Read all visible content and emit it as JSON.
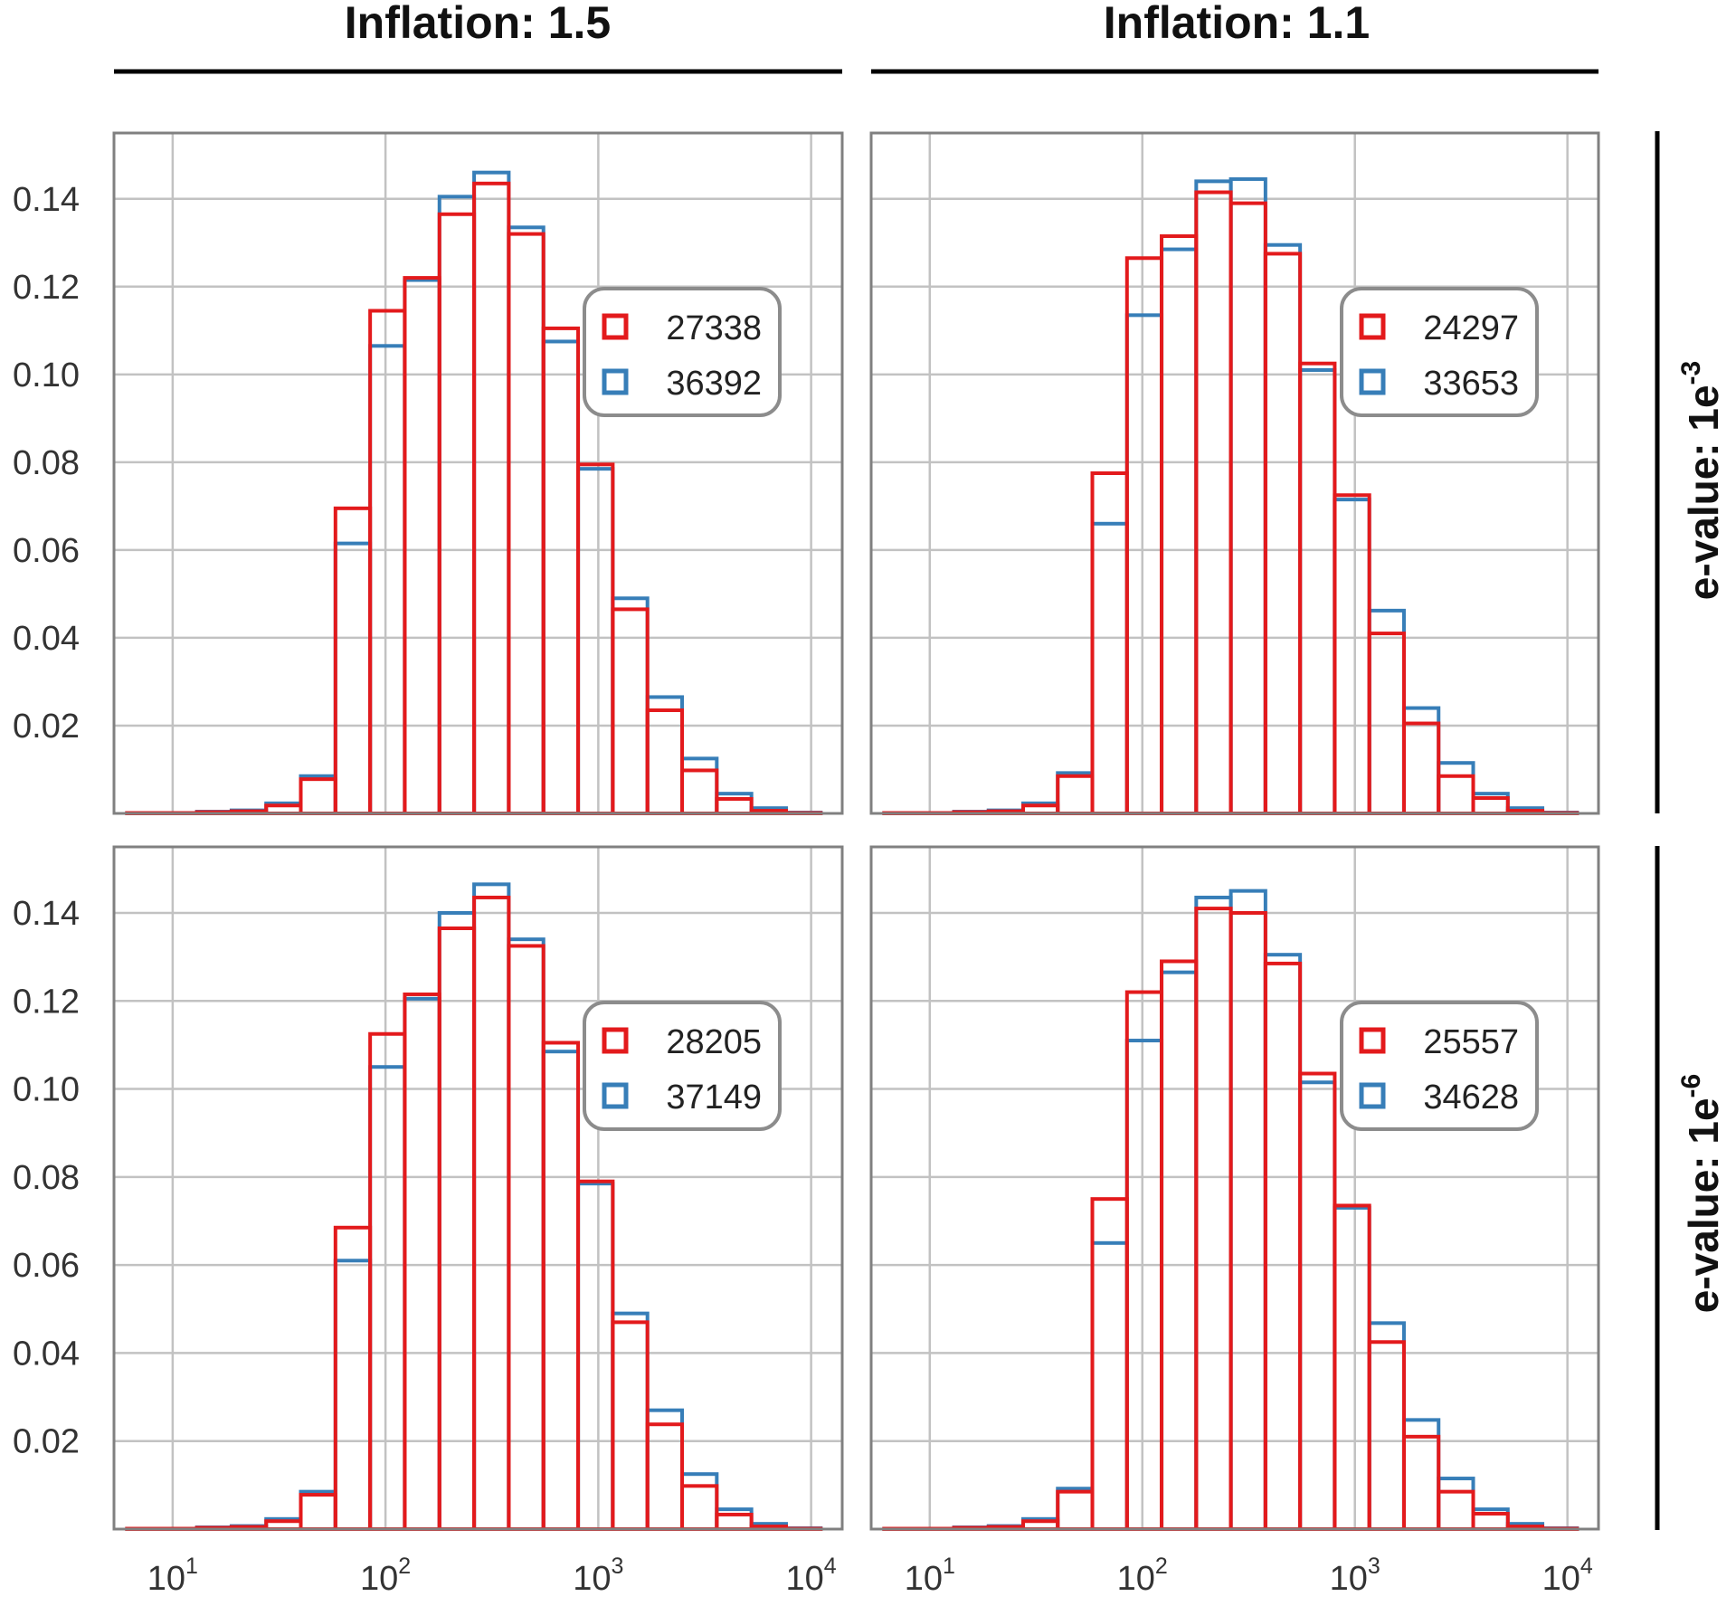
{
  "column_titles": [
    "Inflation: 1.5",
    "Inflation: 1.1"
  ],
  "row_titles": [
    {
      "prefix": "e-value: 1e",
      "exponent": "-3"
    },
    {
      "prefix": "e-value: 1e",
      "exponent": "-6"
    }
  ],
  "colors": {
    "red": "#e31a1c",
    "blue": "#377eb8",
    "grid": "#c2c2c2",
    "frame": "#808080"
  },
  "chart_data": [
    {
      "type": "histogram",
      "panel": "Inflation: 1.5 / e-value: 1e-3",
      "x_scale": "log",
      "xlim": [
        5.3,
        14000
      ],
      "ylim": [
        0,
        0.155
      ],
      "x_ticks": [
        {
          "base": "10",
          "exp": "1"
        },
        {
          "base": "10",
          "exp": "2"
        },
        {
          "base": "10",
          "exp": "3"
        },
        {
          "base": "10",
          "exp": "4"
        }
      ],
      "y_ticks": [
        "0.02",
        "0.04",
        "0.06",
        "0.08",
        "0.10",
        "0.12",
        "0.14"
      ],
      "grid": true,
      "legend_position": "right",
      "bin_edges": [
        6.1,
        8.9,
        13.0,
        18.9,
        27.5,
        40.0,
        58.2,
        84.7,
        123.2,
        179.3,
        260.9,
        379.6,
        552.4,
        803.8,
        1169.6,
        1701.9,
        2476.4,
        3603.4,
        5243.4,
        7629.6,
        11101.8
      ],
      "series": [
        {
          "name": "27338",
          "color": "red",
          "values": [
            0.0001,
            0.0001,
            0.0003,
            0.0005,
            0.0018,
            0.0078,
            0.0695,
            0.1145,
            0.122,
            0.1365,
            0.1435,
            0.132,
            0.1105,
            0.0795,
            0.0465,
            0.0235,
            0.0098,
            0.0033,
            0.0006,
            0.0001
          ]
        },
        {
          "name": "36392",
          "color": "blue",
          "values": [
            0.0001,
            0.0001,
            0.0004,
            0.0007,
            0.0023,
            0.0085,
            0.0615,
            0.1065,
            0.1215,
            0.1405,
            0.146,
            0.1335,
            0.1075,
            0.0785,
            0.049,
            0.0265,
            0.0125,
            0.0045,
            0.0012,
            0.0002
          ]
        }
      ]
    },
    {
      "type": "histogram",
      "panel": "Inflation: 1.1 / e-value: 1e-3",
      "x_scale": "log",
      "xlim": [
        5.3,
        14000
      ],
      "ylim": [
        0,
        0.155
      ],
      "x_ticks": [
        {
          "base": "10",
          "exp": "1"
        },
        {
          "base": "10",
          "exp": "2"
        },
        {
          "base": "10",
          "exp": "3"
        },
        {
          "base": "10",
          "exp": "4"
        }
      ],
      "y_ticks": [
        "0.02",
        "0.04",
        "0.06",
        "0.08",
        "0.10",
        "0.12",
        "0.14"
      ],
      "grid": true,
      "legend_position": "right",
      "bin_edges": [
        6.1,
        8.9,
        13.0,
        18.9,
        27.5,
        40.0,
        58.2,
        84.7,
        123.2,
        179.3,
        260.9,
        379.6,
        552.4,
        803.8,
        1169.6,
        1701.9,
        2476.4,
        3603.4,
        5243.4,
        7629.6,
        11101.8
      ],
      "series": [
        {
          "name": "24297",
          "color": "red",
          "values": [
            0.0001,
            0.0001,
            0.0003,
            0.0005,
            0.0018,
            0.0085,
            0.0775,
            0.1265,
            0.1315,
            0.1415,
            0.139,
            0.1275,
            0.1025,
            0.0725,
            0.041,
            0.0205,
            0.0085,
            0.0035,
            0.0006,
            0.0001
          ]
        },
        {
          "name": "33653",
          "color": "blue",
          "values": [
            0.0001,
            0.0001,
            0.0004,
            0.0007,
            0.0023,
            0.0092,
            0.066,
            0.1135,
            0.1285,
            0.144,
            0.1445,
            0.1295,
            0.101,
            0.0715,
            0.0462,
            0.024,
            0.0115,
            0.0045,
            0.0012,
            0.0002
          ]
        }
      ]
    },
    {
      "type": "histogram",
      "panel": "Inflation: 1.5 / e-value: 1e-6",
      "x_scale": "log",
      "xlim": [
        5.3,
        14000
      ],
      "ylim": [
        0,
        0.155
      ],
      "x_ticks": [
        {
          "base": "10",
          "exp": "1"
        },
        {
          "base": "10",
          "exp": "2"
        },
        {
          "base": "10",
          "exp": "3"
        },
        {
          "base": "10",
          "exp": "4"
        }
      ],
      "y_ticks": [
        "0.02",
        "0.04",
        "0.06",
        "0.08",
        "0.10",
        "0.12",
        "0.14"
      ],
      "grid": true,
      "legend_position": "right",
      "bin_edges": [
        6.1,
        8.9,
        13.0,
        18.9,
        27.5,
        40.0,
        58.2,
        84.7,
        123.2,
        179.3,
        260.9,
        379.6,
        552.4,
        803.8,
        1169.6,
        1701.9,
        2476.4,
        3603.4,
        5243.4,
        7629.6,
        11101.8
      ],
      "series": [
        {
          "name": "28205",
          "color": "red",
          "values": [
            0.0001,
            0.0001,
            0.0003,
            0.0005,
            0.0018,
            0.0078,
            0.0685,
            0.1125,
            0.1215,
            0.1365,
            0.1435,
            0.1325,
            0.1105,
            0.079,
            0.047,
            0.0238,
            0.0098,
            0.0033,
            0.0006,
            0.0001
          ]
        },
        {
          "name": "37149",
          "color": "blue",
          "values": [
            0.0001,
            0.0001,
            0.0004,
            0.0007,
            0.0023,
            0.0085,
            0.061,
            0.105,
            0.1205,
            0.14,
            0.1465,
            0.134,
            0.1085,
            0.0785,
            0.049,
            0.027,
            0.0125,
            0.0045,
            0.0012,
            0.0002
          ]
        }
      ]
    },
    {
      "type": "histogram",
      "panel": "Inflation: 1.1 / e-value: 1e-6",
      "x_scale": "log",
      "xlim": [
        5.3,
        14000
      ],
      "ylim": [
        0,
        0.155
      ],
      "x_ticks": [
        {
          "base": "10",
          "exp": "1"
        },
        {
          "base": "10",
          "exp": "2"
        },
        {
          "base": "10",
          "exp": "3"
        },
        {
          "base": "10",
          "exp": "4"
        }
      ],
      "y_ticks": [
        "0.02",
        "0.04",
        "0.06",
        "0.08",
        "0.10",
        "0.12",
        "0.14"
      ],
      "grid": true,
      "legend_position": "right",
      "bin_edges": [
        6.1,
        8.9,
        13.0,
        18.9,
        27.5,
        40.0,
        58.2,
        84.7,
        123.2,
        179.3,
        260.9,
        379.6,
        552.4,
        803.8,
        1169.6,
        1701.9,
        2476.4,
        3603.4,
        5243.4,
        7629.6,
        11101.8
      ],
      "series": [
        {
          "name": "25557",
          "color": "red",
          "values": [
            0.0001,
            0.0001,
            0.0003,
            0.0005,
            0.0018,
            0.0085,
            0.075,
            0.122,
            0.129,
            0.141,
            0.14,
            0.1285,
            0.1035,
            0.0735,
            0.0425,
            0.021,
            0.0085,
            0.0035,
            0.0006,
            0.0001
          ]
        },
        {
          "name": "34628",
          "color": "blue",
          "values": [
            0.0001,
            0.0001,
            0.0004,
            0.0007,
            0.0023,
            0.0092,
            0.065,
            0.111,
            0.1265,
            0.1435,
            0.145,
            0.1305,
            0.1015,
            0.073,
            0.0468,
            0.0248,
            0.0115,
            0.0045,
            0.0012,
            0.0002
          ]
        }
      ]
    }
  ]
}
